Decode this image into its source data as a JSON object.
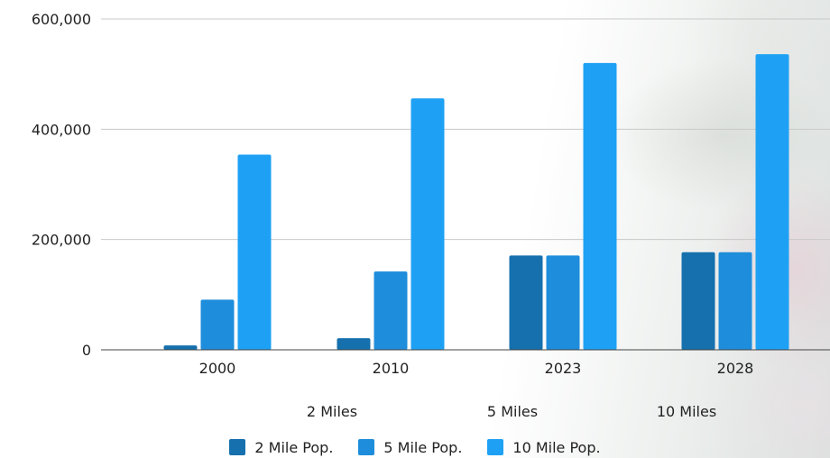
{
  "chart_data": {
    "type": "bar",
    "categories": [
      "2000",
      "2010",
      "2023",
      "2028"
    ],
    "sub_labels": [
      "2 Miles",
      "5 Miles",
      "10 Miles"
    ],
    "series": [
      {
        "name": "2 Mile Pop.",
        "color": "#1570AD",
        "values": [
          8000,
          21000,
          171000,
          177000
        ]
      },
      {
        "name": "5 Mile Pop.",
        "color": "#1E8DDB",
        "values": [
          91000,
          142000,
          171000,
          177000
        ]
      },
      {
        "name": "10 Mile Pop.",
        "color": "#1EA1F5",
        "values": [
          354000,
          456000,
          520000,
          536000
        ]
      }
    ],
    "y_ticks": [
      0,
      200000,
      400000,
      600000
    ],
    "y_tick_labels": [
      "0",
      "200,000",
      "400,000",
      "600,000"
    ],
    "ylim": [
      0,
      600000
    ],
    "grid": true,
    "legend_position": "bottom"
  }
}
